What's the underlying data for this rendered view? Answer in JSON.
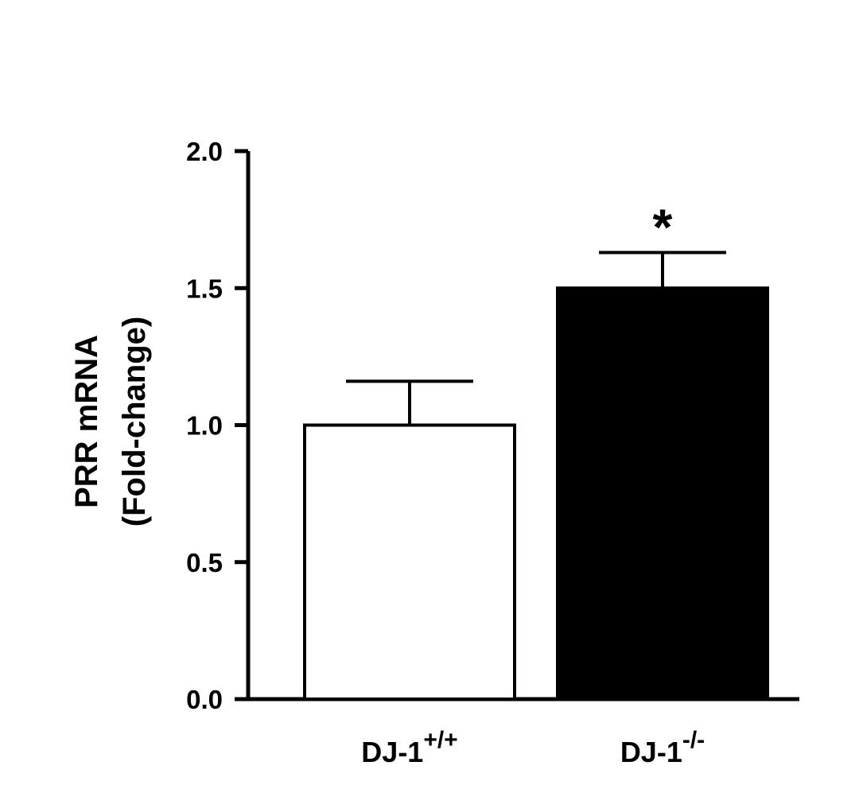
{
  "chart_data": {
    "type": "bar",
    "ylabel": [
      "PRR mRNA",
      "(Fold-change)"
    ],
    "categories": [
      {
        "text": "DJ-1",
        "superscript": "+/+"
      },
      {
        "text": "DJ-1",
        "superscript": "-/-"
      }
    ],
    "values": [
      1.0,
      1.5
    ],
    "errors": [
      0.16,
      0.13
    ],
    "colors": [
      "#ffffff",
      "#000000"
    ],
    "annotation": "*",
    "ylim": [
      0,
      2
    ],
    "yticks": [
      {
        "value": 0,
        "label": "0.0"
      },
      0.5,
      {
        "value": 1,
        "label": "1.0"
      },
      1.5,
      {
        "value": 2,
        "label": "2.0"
      }
    ]
  }
}
